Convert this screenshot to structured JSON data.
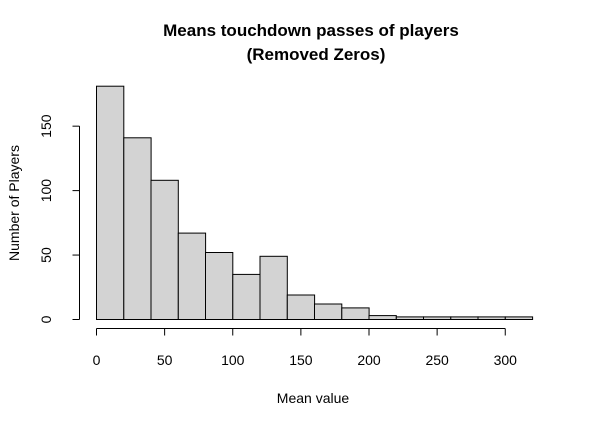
{
  "chart_data": {
    "type": "bar",
    "title": "Means touchdown passes of players",
    "subtitle": "(Removed Zeros)",
    "xlabel": "Mean value",
    "ylabel": "Number of Players",
    "bin_edges": [
      0,
      20,
      40,
      60,
      80,
      100,
      120,
      140,
      160,
      180,
      200,
      220,
      240,
      260,
      280,
      300,
      320
    ],
    "values": [
      181,
      141,
      108,
      67,
      52,
      35,
      49,
      19,
      12,
      9,
      3,
      2,
      2,
      2,
      2,
      2
    ],
    "xlim": [
      0,
      320
    ],
    "ylim": [
      0,
      180
    ],
    "x_ticks": [
      0,
      50,
      100,
      150,
      200,
      250,
      300
    ],
    "y_ticks": [
      0,
      50,
      100,
      150
    ],
    "bar_color": "#d3d3d3",
    "grid": false,
    "legend": "none"
  }
}
